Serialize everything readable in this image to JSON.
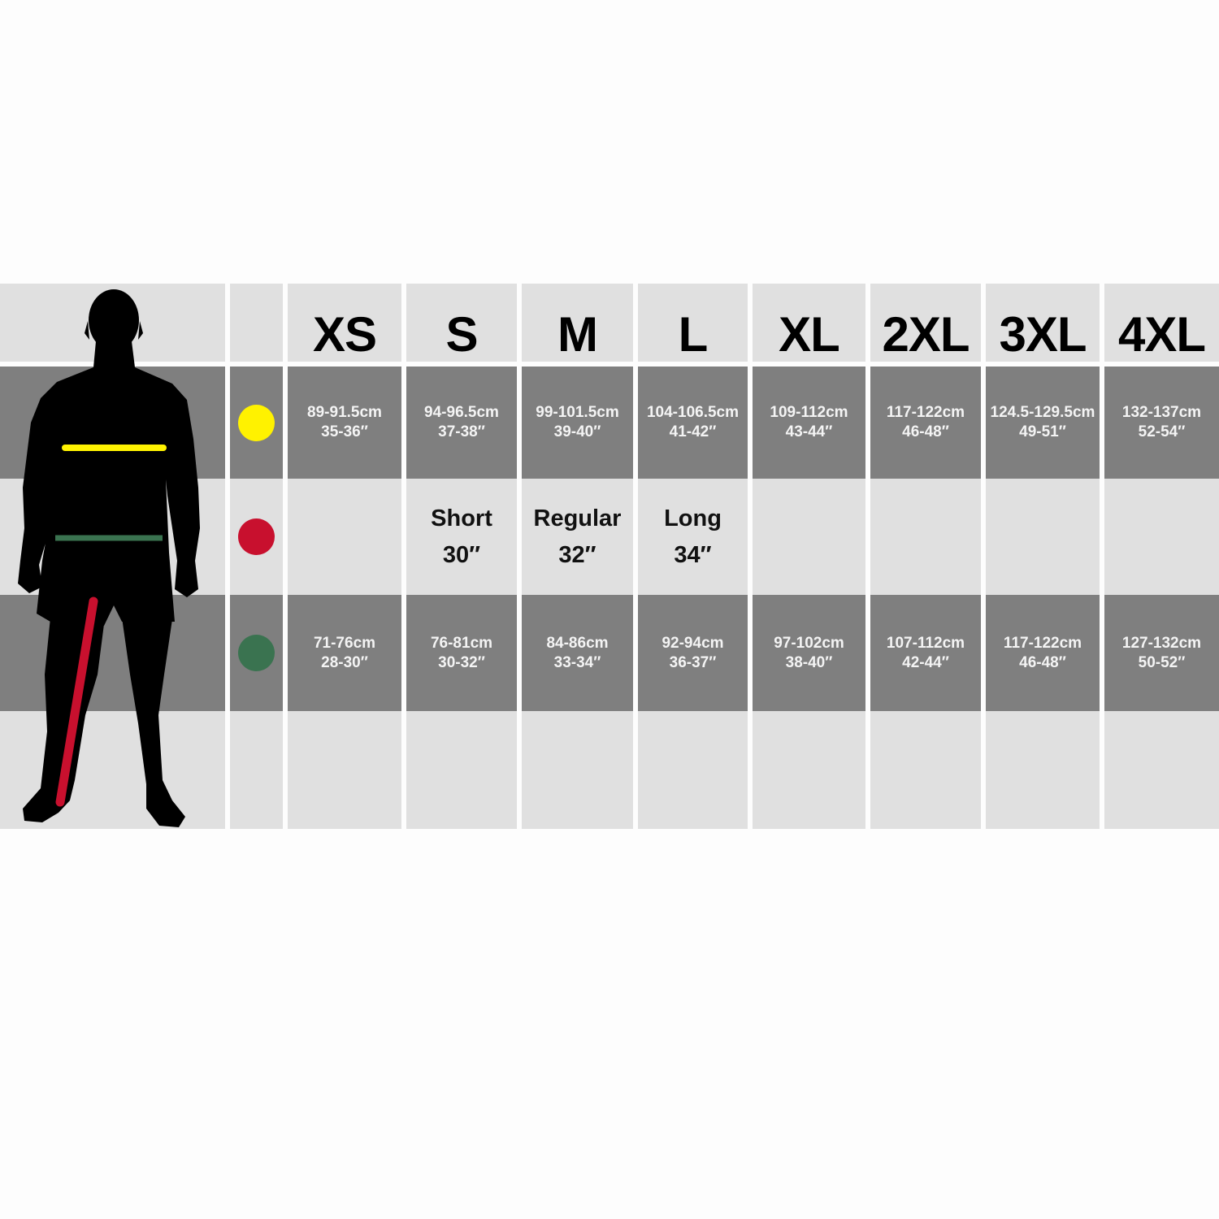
{
  "sizes": [
    "XS",
    "S",
    "M",
    "L",
    "XL",
    "2XL",
    "3XL",
    "4XL"
  ],
  "rows": [
    {
      "indicator": "yellow",
      "color": "#fff200",
      "cells": [
        [
          "89-91.5cm",
          "35-36″"
        ],
        [
          "94-96.5cm",
          "37-38″"
        ],
        [
          "99-101.5cm",
          "39-40″"
        ],
        [
          "104-106.5cm",
          "41-42″"
        ],
        [
          "109-112cm",
          "43-44″"
        ],
        [
          "117-122cm",
          "46-48″"
        ],
        [
          "124.5-129.5cm",
          "49-51″"
        ],
        [
          "132-137cm",
          "52-54″"
        ]
      ]
    },
    {
      "indicator": "red",
      "color": "#c8102e",
      "cells": [
        [
          "",
          ""
        ],
        [
          "Short",
          "30″"
        ],
        [
          "Regular",
          "32″"
        ],
        [
          "Long",
          "34″"
        ],
        [
          "",
          ""
        ],
        [
          "",
          ""
        ],
        [
          "",
          ""
        ],
        [
          "",
          ""
        ]
      ]
    },
    {
      "indicator": "green",
      "color": "#3a7350",
      "cells": [
        [
          "71-76cm",
          "28-30″"
        ],
        [
          "76-81cm",
          "30-32″"
        ],
        [
          "84-86cm",
          "33-34″"
        ],
        [
          "92-94cm",
          "36-37″"
        ],
        [
          "97-102cm",
          "38-40″"
        ],
        [
          "107-112cm",
          "42-44″"
        ],
        [
          "117-122cm",
          "46-48″"
        ],
        [
          "127-132cm",
          "50-52″"
        ]
      ]
    }
  ],
  "silhouette": {
    "chest_line_color": "#fff200",
    "waist_line_color": "#3a7350",
    "leg_line_color": "#c8102e"
  }
}
